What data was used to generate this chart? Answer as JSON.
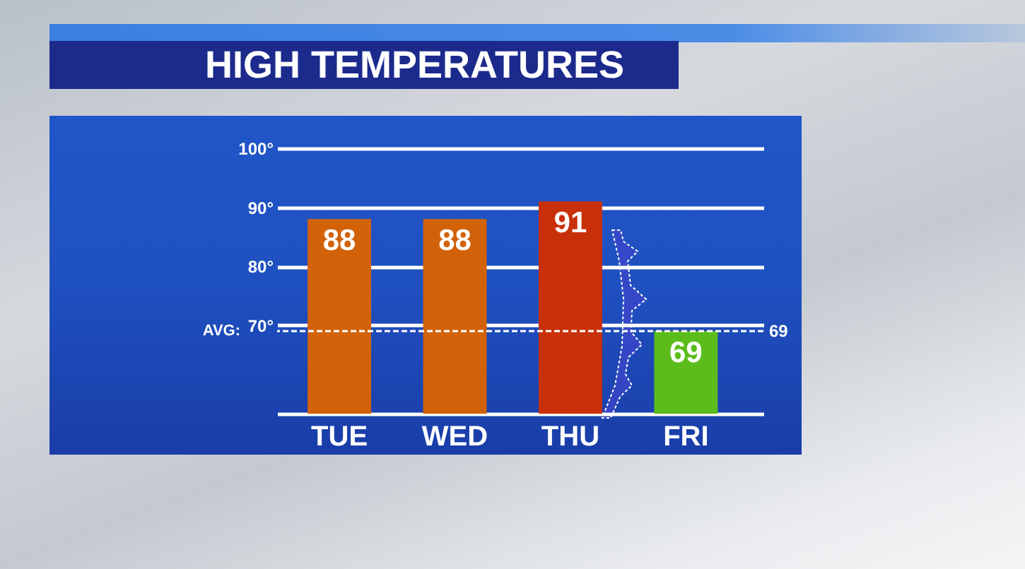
{
  "chart_data": {
    "type": "bar",
    "title": "HIGH TEMPERATURES",
    "categories": [
      "TUE",
      "WED",
      "THU",
      "FRI"
    ],
    "values": [
      88,
      88,
      91,
      69
    ],
    "colors": [
      "#d2620a",
      "#d2620a",
      "#c8300a",
      "#5cbc1c"
    ],
    "ylim": [
      55,
      100
    ],
    "yticks": [
      {
        "value": 70,
        "label": "70°"
      },
      {
        "value": 80,
        "label": "80°"
      },
      {
        "value": 90,
        "label": "90°"
      },
      {
        "value": 100,
        "label": "100°"
      }
    ],
    "grid": "y",
    "data_labels": true,
    "ref_lines": [
      {
        "axis": "y",
        "value": 69,
        "label": "69",
        "color": "#ffffff",
        "line_style": "dashed"
      }
    ],
    "annotations": [
      "AVG:"
    ]
  }
}
